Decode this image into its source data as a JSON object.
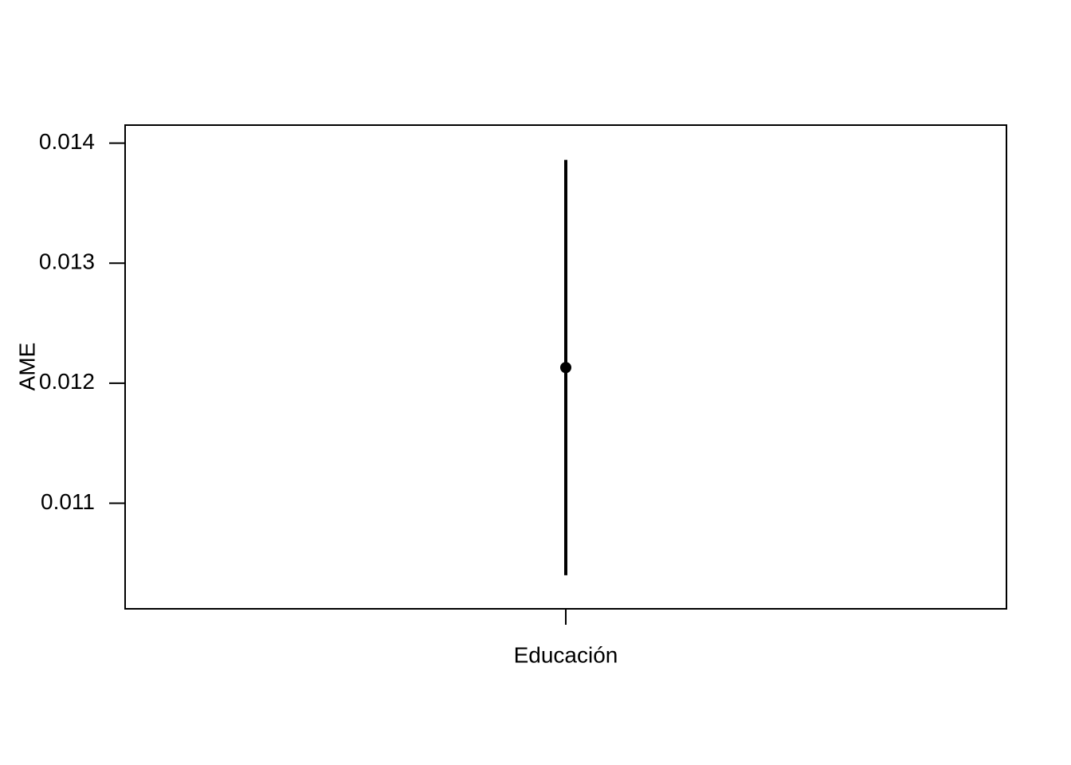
{
  "chart_data": {
    "type": "scatter",
    "categories": [
      "Educación"
    ],
    "series": [
      {
        "values": [
          0.01213
        ],
        "ci_lower": [
          0.0104
        ],
        "ci_upper": [
          0.01386
        ]
      }
    ],
    "ylabel": "AME",
    "xlabel": "",
    "ylim": [
      0.01012,
      0.01415
    ],
    "yticks": [
      "0.011",
      "0.012",
      "0.013",
      "0.014"
    ],
    "grid": false,
    "legend": "none"
  }
}
